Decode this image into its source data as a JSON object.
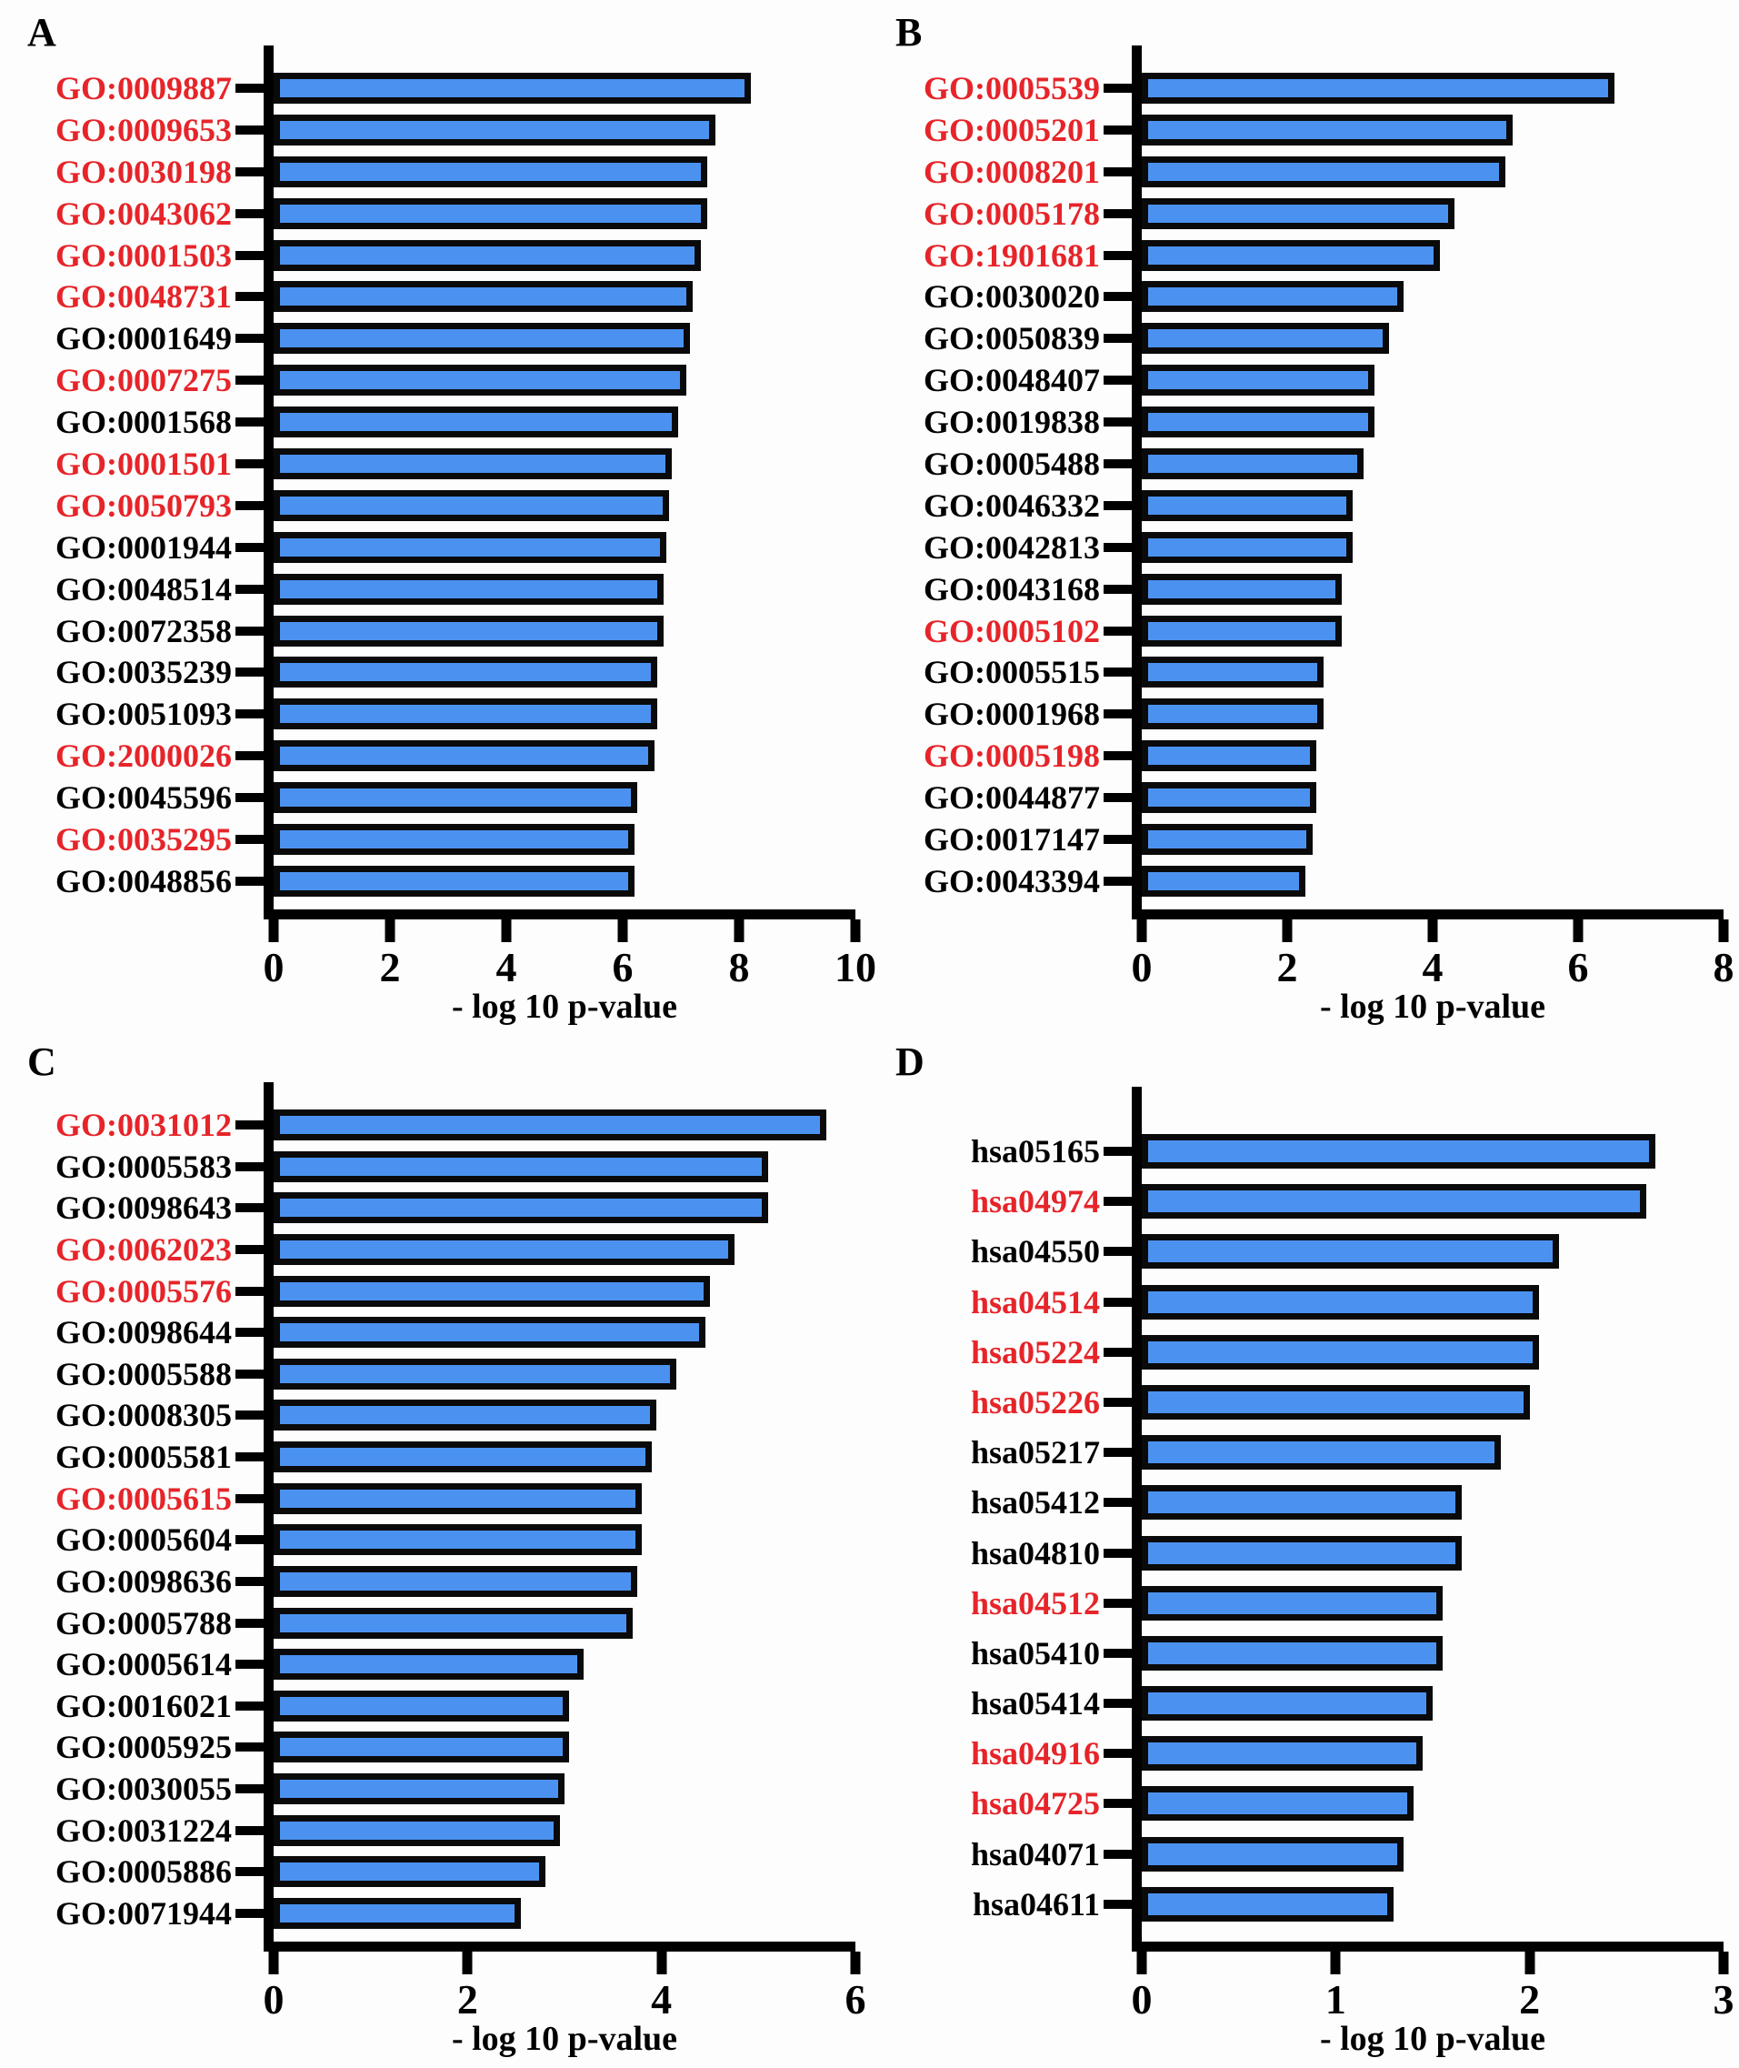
{
  "figure": {
    "bar_fill_color": "#4b92f0",
    "bar_border_color": "#0a0a0a",
    "highlight_label_color": "#e62429",
    "normal_label_color": "#000000",
    "xlabel": "- log 10 p-value"
  },
  "chart_data": [
    {
      "type": "bar",
      "panel": "A",
      "orientation": "horizontal",
      "xlabel": "- log 10 p-value",
      "xlim": [
        0,
        10
      ],
      "xticks": [
        0,
        2,
        4,
        6,
        8,
        10
      ],
      "grid": false,
      "legend": null,
      "bars": [
        {
          "label": "GO:0009887",
          "value": 8.2,
          "red": true
        },
        {
          "label": "GO:0009653",
          "value": 7.6,
          "red": true
        },
        {
          "label": "GO:0030198",
          "value": 7.45,
          "red": true
        },
        {
          "label": "GO:0043062",
          "value": 7.45,
          "red": true
        },
        {
          "label": "GO:0001503",
          "value": 7.35,
          "red": true
        },
        {
          "label": "GO:0048731",
          "value": 7.2,
          "red": true
        },
        {
          "label": "GO:0001649",
          "value": 7.15,
          "red": false
        },
        {
          "label": "GO:0007275",
          "value": 7.1,
          "red": true
        },
        {
          "label": "GO:0001568",
          "value": 6.95,
          "red": false
        },
        {
          "label": "GO:0001501",
          "value": 6.85,
          "red": true
        },
        {
          "label": "GO:0050793",
          "value": 6.8,
          "red": true
        },
        {
          "label": "GO:0001944",
          "value": 6.75,
          "red": false
        },
        {
          "label": "GO:0048514",
          "value": 6.7,
          "red": false
        },
        {
          "label": "GO:0072358",
          "value": 6.7,
          "red": false
        },
        {
          "label": "GO:0035239",
          "value": 6.6,
          "red": false
        },
        {
          "label": "GO:0051093",
          "value": 6.6,
          "red": false
        },
        {
          "label": "GO:2000026",
          "value": 6.55,
          "red": true
        },
        {
          "label": "GO:0045596",
          "value": 6.25,
          "red": false
        },
        {
          "label": "GO:0035295",
          "value": 6.2,
          "red": true
        },
        {
          "label": "GO:0048856",
          "value": 6.2,
          "red": false
        }
      ]
    },
    {
      "type": "bar",
      "panel": "B",
      "orientation": "horizontal",
      "xlabel": "- log 10 p-value",
      "xlim": [
        0,
        8
      ],
      "xticks": [
        0,
        2,
        4,
        6,
        8
      ],
      "grid": false,
      "legend": null,
      "bars": [
        {
          "label": "GO:0005539",
          "value": 6.5,
          "red": true
        },
        {
          "label": "GO:0005201",
          "value": 5.1,
          "red": true
        },
        {
          "label": "GO:0008201",
          "value": 5.0,
          "red": true
        },
        {
          "label": "GO:0005178",
          "value": 4.3,
          "red": true
        },
        {
          "label": "GO:1901681",
          "value": 4.1,
          "red": true
        },
        {
          "label": "GO:0030020",
          "value": 3.6,
          "red": false
        },
        {
          "label": "GO:0050839",
          "value": 3.4,
          "red": false
        },
        {
          "label": "GO:0048407",
          "value": 3.2,
          "red": false
        },
        {
          "label": "GO:0019838",
          "value": 3.2,
          "red": false
        },
        {
          "label": "GO:0005488",
          "value": 3.05,
          "red": false
        },
        {
          "label": "GO:0046332",
          "value": 2.9,
          "red": false
        },
        {
          "label": "GO:0042813",
          "value": 2.9,
          "red": false
        },
        {
          "label": "GO:0043168",
          "value": 2.75,
          "red": false
        },
        {
          "label": "GO:0005102",
          "value": 2.75,
          "red": true
        },
        {
          "label": "GO:0005515",
          "value": 2.5,
          "red": false
        },
        {
          "label": "GO:0001968",
          "value": 2.5,
          "red": false
        },
        {
          "label": "GO:0005198",
          "value": 2.4,
          "red": true
        },
        {
          "label": "GO:0044877",
          "value": 2.4,
          "red": false
        },
        {
          "label": "GO:0017147",
          "value": 2.35,
          "red": false
        },
        {
          "label": "GO:0043394",
          "value": 2.25,
          "red": false
        }
      ]
    },
    {
      "type": "bar",
      "panel": "C",
      "orientation": "horizontal",
      "xlabel": "- log 10 p-value",
      "xlim": [
        0,
        6
      ],
      "xticks": [
        0,
        2,
        4,
        6
      ],
      "grid": false,
      "legend": null,
      "bars": [
        {
          "label": "GO:0031012",
          "value": 5.7,
          "red": true
        },
        {
          "label": "GO:0005583",
          "value": 5.1,
          "red": false
        },
        {
          "label": "GO:0098643",
          "value": 5.1,
          "red": false
        },
        {
          "label": "GO:0062023",
          "value": 4.75,
          "red": true
        },
        {
          "label": "GO:0005576",
          "value": 4.5,
          "red": true
        },
        {
          "label": "GO:0098644",
          "value": 4.45,
          "red": false
        },
        {
          "label": "GO:0005588",
          "value": 4.15,
          "red": false
        },
        {
          "label": "GO:0008305",
          "value": 3.95,
          "red": false
        },
        {
          "label": "GO:0005581",
          "value": 3.9,
          "red": false
        },
        {
          "label": "GO:0005615",
          "value": 3.8,
          "red": true
        },
        {
          "label": "GO:0005604",
          "value": 3.8,
          "red": false
        },
        {
          "label": "GO:0098636",
          "value": 3.75,
          "red": false
        },
        {
          "label": "GO:0005788",
          "value": 3.7,
          "red": false
        },
        {
          "label": "GO:0005614",
          "value": 3.2,
          "red": false
        },
        {
          "label": "GO:0016021",
          "value": 3.05,
          "red": false
        },
        {
          "label": "GO:0005925",
          "value": 3.05,
          "red": false
        },
        {
          "label": "GO:0030055",
          "value": 3.0,
          "red": false
        },
        {
          "label": "GO:0031224",
          "value": 2.95,
          "red": false
        },
        {
          "label": "GO:0005886",
          "value": 2.8,
          "red": false
        },
        {
          "label": "GO:0071944",
          "value": 2.55,
          "red": false
        }
      ]
    },
    {
      "type": "bar",
      "panel": "D",
      "orientation": "horizontal",
      "xlabel": "- log 10 p-value",
      "xlim": [
        0,
        3
      ],
      "xticks": [
        0,
        1,
        2,
        3
      ],
      "grid": false,
      "legend": null,
      "bars": [
        {
          "label": "hsa05165",
          "value": 2.65,
          "red": false
        },
        {
          "label": "hsa04974",
          "value": 2.6,
          "red": true
        },
        {
          "label": "hsa04550",
          "value": 2.15,
          "red": false
        },
        {
          "label": "hsa04514",
          "value": 2.05,
          "red": true
        },
        {
          "label": "hsa05224",
          "value": 2.05,
          "red": true
        },
        {
          "label": "hsa05226",
          "value": 2.0,
          "red": true
        },
        {
          "label": "hsa05217",
          "value": 1.85,
          "red": false
        },
        {
          "label": "hsa05412",
          "value": 1.65,
          "red": false
        },
        {
          "label": "hsa04810",
          "value": 1.65,
          "red": false
        },
        {
          "label": "hsa04512",
          "value": 1.55,
          "red": true
        },
        {
          "label": "hsa05410",
          "value": 1.55,
          "red": false
        },
        {
          "label": "hsa05414",
          "value": 1.5,
          "red": false
        },
        {
          "label": "hsa04916",
          "value": 1.45,
          "red": true
        },
        {
          "label": "hsa04725",
          "value": 1.4,
          "red": true
        },
        {
          "label": "hsa04071",
          "value": 1.35,
          "red": false
        },
        {
          "label": "hsa04611",
          "value": 1.3,
          "red": false
        }
      ]
    }
  ]
}
